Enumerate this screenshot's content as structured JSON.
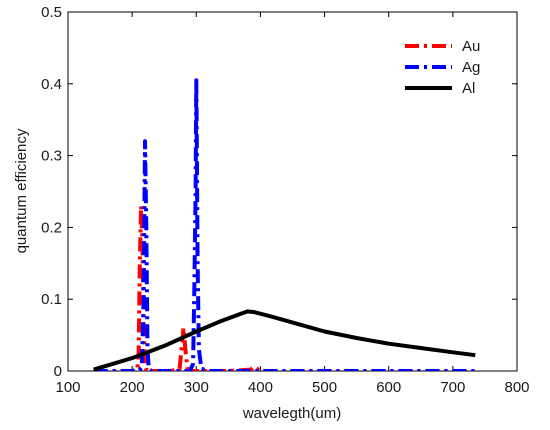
{
  "chart_data": {
    "type": "line",
    "title": "",
    "xlabel": "wavelegth(um)",
    "ylabel": "quantum efficiency",
    "xlim": [
      100,
      800
    ],
    "ylim": [
      0,
      0.5
    ],
    "xticks": [
      100,
      200,
      300,
      400,
      500,
      600,
      700,
      800
    ],
    "yticks": [
      0,
      0.1,
      0.2,
      0.3,
      0.4,
      0.5
    ],
    "xtick_labels": [
      "100",
      "200",
      "300",
      "400",
      "500",
      "600",
      "700",
      "800"
    ],
    "ytick_labels": [
      "0",
      "0.1",
      "0.2",
      "0.3",
      "0.4",
      "0.5"
    ],
    "grid": false,
    "legend_position": "top-right",
    "series": [
      {
        "name": "Au",
        "color": "#ff0000",
        "style": "dash-dot",
        "x": [
          140,
          200,
          208,
          210,
          212,
          214,
          216,
          218,
          220,
          222,
          226,
          240,
          260,
          274,
          277,
          280,
          283,
          286,
          290,
          300,
          350,
          385,
          390,
          395,
          400,
          500,
          600,
          700,
          735
        ],
        "y": [
          0,
          0,
          0.002,
          0.02,
          0.15,
          0.23,
          0.18,
          0.06,
          0.01,
          0.002,
          0,
          0,
          0,
          0.003,
          0.03,
          0.06,
          0.03,
          0.004,
          0,
          0,
          0,
          0.002,
          0.006,
          0.003,
          0,
          0,
          0,
          0,
          0
        ]
      },
      {
        "name": "Ag",
        "color": "#0000ff",
        "style": "dash-dot",
        "x": [
          140,
          200,
          210,
          215,
          218,
          220,
          222,
          224,
          226,
          230,
          260,
          290,
          295,
          297,
          299,
          300,
          301,
          302,
          304,
          308,
          320,
          400,
          500,
          600,
          700,
          735
        ],
        "y": [
          0,
          0,
          0,
          0.005,
          0.1,
          0.32,
          0.2,
          0.03,
          0.003,
          0,
          0,
          0,
          0.01,
          0.12,
          0.25,
          0.405,
          0.3,
          0.15,
          0.03,
          0.003,
          0,
          0,
          0,
          0,
          0,
          0
        ]
      },
      {
        "name": "Al",
        "color": "#000000",
        "style": "solid",
        "x": [
          140,
          200,
          250,
          300,
          340,
          370,
          380,
          390,
          420,
          460,
          500,
          550,
          600,
          650,
          700,
          735
        ],
        "y": [
          0.002,
          0.018,
          0.035,
          0.055,
          0.07,
          0.08,
          0.083,
          0.082,
          0.075,
          0.065,
          0.055,
          0.046,
          0.038,
          0.032,
          0.026,
          0.022
        ]
      }
    ]
  }
}
